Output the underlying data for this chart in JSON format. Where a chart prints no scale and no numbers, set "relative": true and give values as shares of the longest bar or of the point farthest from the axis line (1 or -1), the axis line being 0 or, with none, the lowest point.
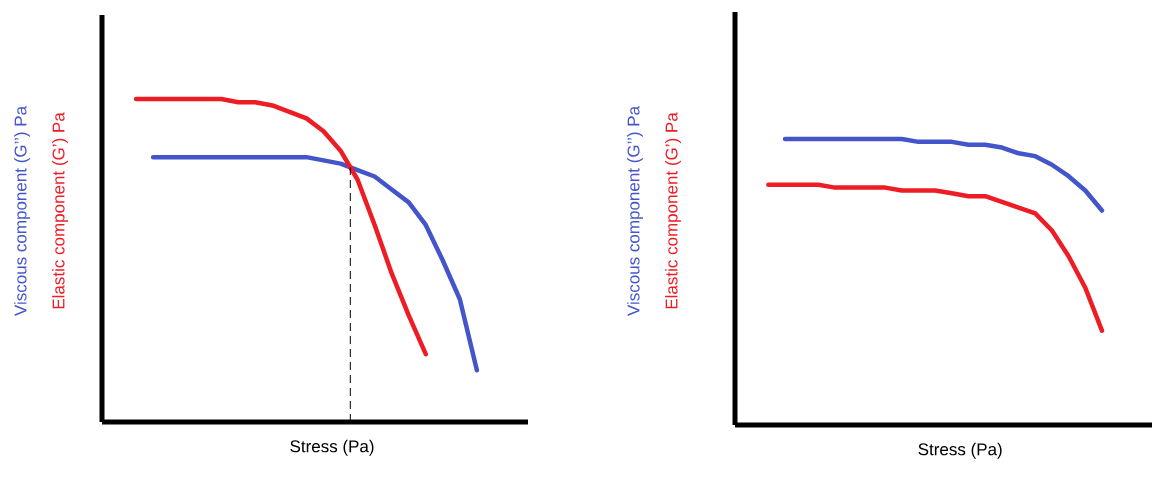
{
  "chart_data": [
    {
      "type": "line",
      "relative": true,
      "xlabel": "Stress (Pa)",
      "categories": [
        null,
        null,
        null,
        null,
        null,
        null,
        null,
        null,
        null,
        null,
        null,
        null,
        null,
        null,
        null,
        null,
        null,
        null,
        null,
        null,
        null,
        null
      ],
      "series": [
        {
          "name": "Viscous component (G’’) Pa",
          "color": "#4455cc",
          "values": [
            null,
            0.82,
            0.82,
            0.82,
            0.82,
            0.82,
            0.82,
            0.82,
            0.82,
            0.82,
            0.82,
            0.81,
            0.8,
            0.78,
            0.76,
            0.72,
            0.68,
            0.61,
            0.5,
            0.38,
            0.16,
            null
          ]
        },
        {
          "name": "Elastic component (G’) Pa",
          "color": "#ee1c25",
          "values": [
            1.0,
            1.0,
            1.0,
            1.0,
            1.0,
            1.0,
            0.99,
            0.99,
            0.98,
            0.96,
            0.94,
            0.9,
            0.84,
            0.75,
            0.61,
            0.46,
            0.33,
            0.21,
            null,
            null,
            null,
            null
          ]
        }
      ]
    },
    {
      "type": "line",
      "relative": true,
      "xlabel": "Stress (Pa)",
      "categories": [
        null,
        null,
        null,
        null,
        null,
        null,
        null,
        null,
        null,
        null,
        null,
        null,
        null,
        null,
        null,
        null,
        null,
        null,
        null,
        null,
        null,
        null
      ],
      "series": [
        {
          "name": "Viscous component (G’’) Pa",
          "color": "#4455cc",
          "values": [
            null,
            1.0,
            1.0,
            1.0,
            1.0,
            1.0,
            1.0,
            1.0,
            1.0,
            0.99,
            0.99,
            0.99,
            0.98,
            0.98,
            0.97,
            0.95,
            0.94,
            0.91,
            0.87,
            0.82,
            0.75,
            null
          ]
        },
        {
          "name": "Elastic component (G’) Pa",
          "color": "#ee1c25",
          "values": [
            0.84,
            0.84,
            0.84,
            0.84,
            0.83,
            0.83,
            0.83,
            0.83,
            0.82,
            0.82,
            0.82,
            0.81,
            0.8,
            0.8,
            0.78,
            0.76,
            0.74,
            0.68,
            0.59,
            0.48,
            0.33,
            null
          ]
        }
      ]
    }
  ]
}
